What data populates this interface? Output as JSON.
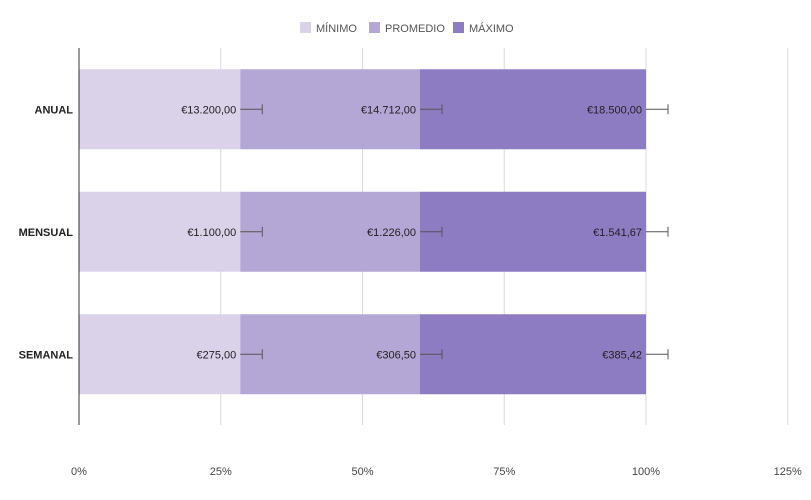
{
  "chart_data": {
    "type": "bar",
    "orientation": "horizontal",
    "stacked": "percent",
    "categories": [
      "ANUAL",
      "MENSUAL",
      "SEMANAL"
    ],
    "series": [
      {
        "name": "MÍNIMO",
        "color": "#d9d2e9",
        "values": [
          13200,
          1100,
          275
        ],
        "labels": [
          "€13.200,00",
          "€1.100,00",
          "€275,00"
        ]
      },
      {
        "name": "PROMEDIO",
        "color": "#b4a7d6",
        "values": [
          14712,
          1226,
          306.5
        ],
        "labels": [
          "€14.712,00",
          "€1.226,00",
          "€306,50"
        ]
      },
      {
        "name": "MÁXIMO",
        "color": "#8e7cc3",
        "values": [
          18500,
          1541.67,
          385.42
        ],
        "labels": [
          "€18.500,00",
          "€1.541,67",
          "€385,42"
        ]
      }
    ],
    "xlim": [
      0,
      125
    ],
    "xticks": [
      "0%",
      "25%",
      "50%",
      "75%",
      "100%",
      "125%"
    ],
    "grid": true,
    "error_bars": true,
    "legend_position": "top"
  }
}
